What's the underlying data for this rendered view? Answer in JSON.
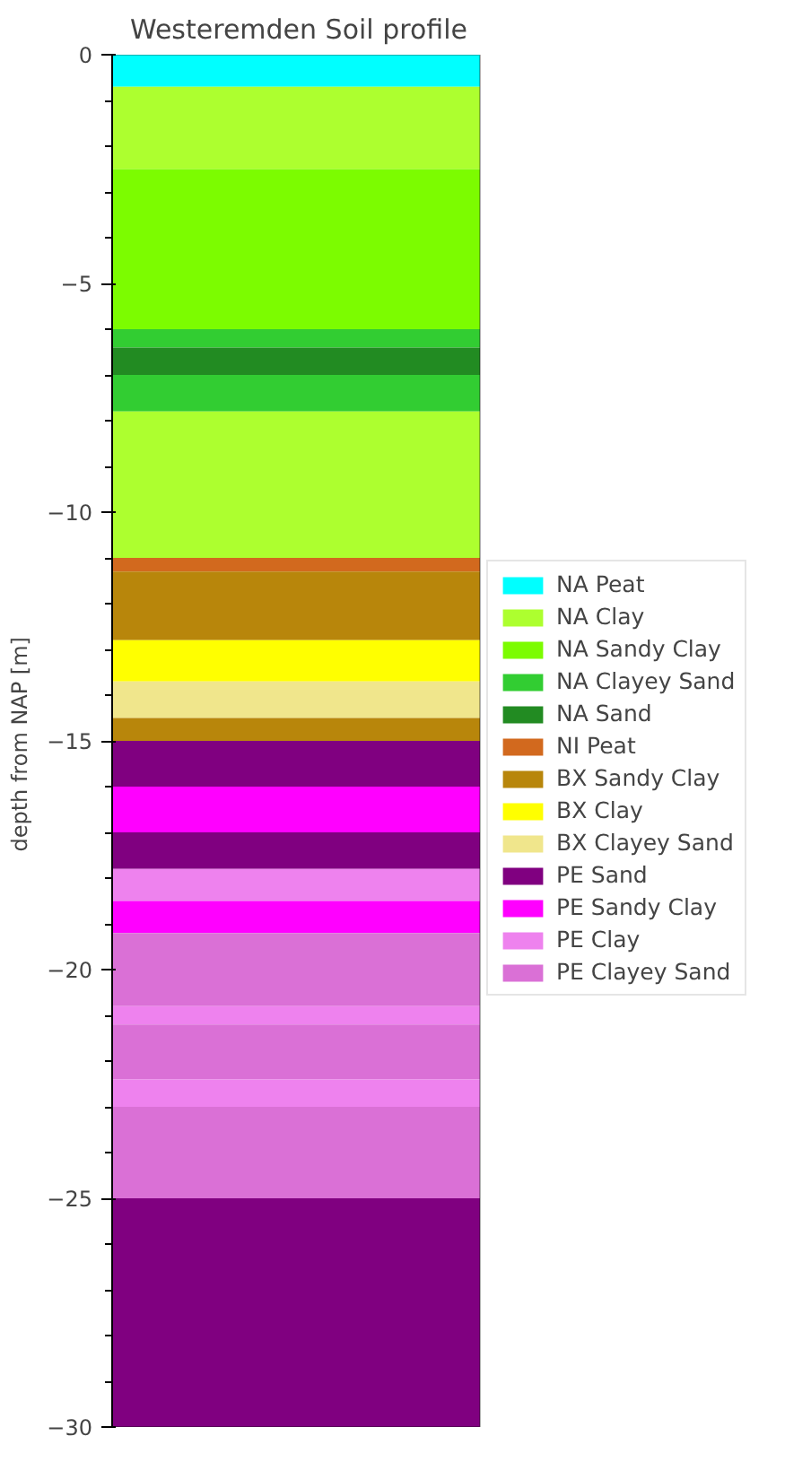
{
  "chart_data": {
    "type": "bar",
    "title": "Westeremden Soil profile",
    "ylabel": "depth from  NAP [m]",
    "categories": [
      null
    ],
    "stacked": true,
    "ylim": [
      -30,
      0
    ],
    "yticks": [
      0,
      -5,
      -10,
      -15,
      -20,
      -25,
      -30
    ],
    "legend": "right",
    "tick_labels": "y",
    "series": [
      {
        "name": "NA Peat",
        "color": "#00ffff",
        "values": [
          -0.7
        ]
      },
      {
        "name": "NA Clay",
        "color": "#adff2f",
        "values": [
          -1.8
        ]
      },
      {
        "name": "NA Sandy Clay",
        "color": "#7cfc00",
        "values": [
          -3.5
        ]
      },
      {
        "name": "NA Clayey Sand",
        "color": "#32cd32",
        "values": [
          -0.4
        ]
      },
      {
        "name": "NA Sand",
        "color": "#228b22",
        "values": [
          -0.6
        ]
      },
      {
        "color": "#32cd32",
        "values": [
          -0.8
        ]
      },
      {
        "color": "#adff2f",
        "values": [
          -3.2
        ]
      },
      {
        "name": "NI Peat",
        "color": "#d2691e",
        "values": [
          -0.3
        ]
      },
      {
        "name": "BX Sandy Clay",
        "color": "#b8860b",
        "values": [
          -1.5
        ]
      },
      {
        "name": "BX Clay",
        "color": "#ffff00",
        "values": [
          -0.9
        ]
      },
      {
        "name": "BX Clayey Sand",
        "color": "#f0e68c",
        "values": [
          -0.8
        ]
      },
      {
        "color": "#b8860b",
        "values": [
          -0.5
        ]
      },
      {
        "name": "PE Sand",
        "color": "#800080",
        "values": [
          -1.0
        ]
      },
      {
        "name": "PE Sandy Clay",
        "color": "#ff00ff",
        "values": [
          -1.0
        ]
      },
      {
        "color": "#800080",
        "values": [
          -0.8
        ]
      },
      {
        "name": "PE Clay",
        "color": "#ee82ee",
        "values": [
          -0.7
        ]
      },
      {
        "color": "#ff00ff",
        "values": [
          -0.7
        ]
      },
      {
        "name": "PE Clayey Sand",
        "color": "#da70d6",
        "values": [
          -1.6
        ]
      },
      {
        "color": "#ee82ee",
        "values": [
          -0.4
        ]
      },
      {
        "color": "#da70d6",
        "values": [
          -1.2
        ]
      },
      {
        "color": "#ee82ee",
        "values": [
          -0.6
        ]
      },
      {
        "color": "#da70d6",
        "values": [
          -2.0
        ]
      },
      {
        "color": "#800080",
        "values": [
          -5.0
        ]
      }
    ]
  }
}
